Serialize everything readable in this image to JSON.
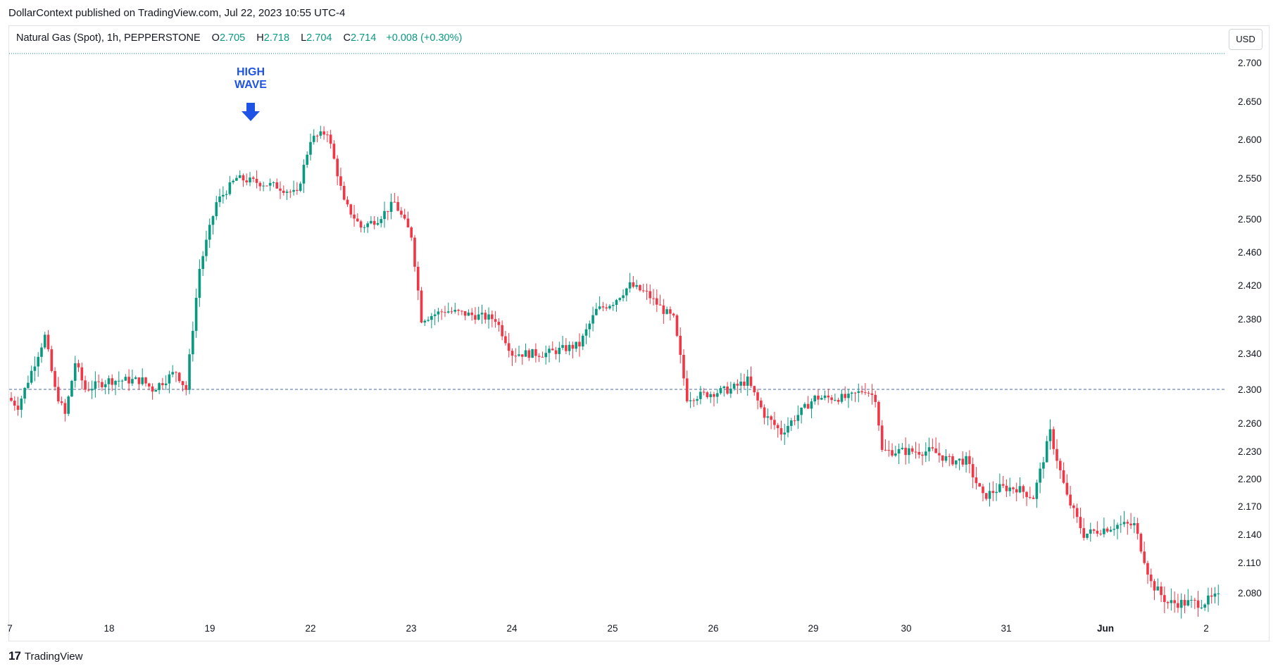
{
  "header": {
    "published": "DollarContext published on TradingView.com, Jul 22, 2023 10:55 UTC-4"
  },
  "legend": {
    "symbol": "Natural Gas (Spot), 1h, PEPPERSTONE",
    "o_label": "O",
    "o": "2.705",
    "h_label": "H",
    "h": "2.718",
    "l_label": "L",
    "l": "2.704",
    "c_label": "C",
    "c": "2.714",
    "change": "+0.008 (+0.30%)"
  },
  "currency_button": "USD",
  "footer": {
    "logo": "17",
    "brand": "TradingView"
  },
  "annotation": {
    "line1": "HIGH",
    "line2": "WAVE",
    "color": "#1e53e5"
  },
  "colors": {
    "up": "#089981",
    "down": "#f23645",
    "grid": "#ffffff",
    "dashed": "#4a6a9c",
    "top_line": "#089981"
  },
  "chart_data": {
    "type": "candlestick",
    "y_ticks": [
      "2.700",
      "2.650",
      "2.600",
      "2.550",
      "2.500",
      "2.460",
      "2.420",
      "2.380",
      "2.340",
      "2.300",
      "2.260",
      "2.230",
      "2.200",
      "2.170",
      "2.140",
      "2.110",
      "2.080"
    ],
    "x_ticks": [
      "7",
      "18",
      "19",
      "22",
      "23",
      "24",
      "25",
      "26",
      "29",
      "30",
      "31",
      "Jun",
      "2"
    ],
    "reference_level": 2.3,
    "ylim": [
      2.06,
      2.71
    ],
    "keypoints": [
      [
        0,
        2.29
      ],
      [
        3,
        2.28
      ],
      [
        8,
        2.33
      ],
      [
        11,
        2.36
      ],
      [
        14,
        2.3
      ],
      [
        17,
        2.27
      ],
      [
        20,
        2.33
      ],
      [
        23,
        2.3
      ],
      [
        30,
        2.31
      ],
      [
        40,
        2.31
      ],
      [
        43,
        2.3
      ],
      [
        50,
        2.32
      ],
      [
        53,
        2.3
      ],
      [
        57,
        2.44
      ],
      [
        62,
        2.52
      ],
      [
        68,
        2.55
      ],
      [
        80,
        2.54
      ],
      [
        86,
        2.53
      ],
      [
        90,
        2.6
      ],
      [
        95,
        2.61
      ],
      [
        100,
        2.52
      ],
      [
        105,
        2.49
      ],
      [
        110,
        2.5
      ],
      [
        115,
        2.52
      ],
      [
        120,
        2.48
      ],
      [
        123,
        2.38
      ],
      [
        130,
        2.39
      ],
      [
        145,
        2.38
      ],
      [
        150,
        2.34
      ],
      [
        160,
        2.34
      ],
      [
        170,
        2.35
      ],
      [
        175,
        2.39
      ],
      [
        180,
        2.4
      ],
      [
        185,
        2.42
      ],
      [
        190,
        2.41
      ],
      [
        195,
        2.39
      ],
      [
        198,
        2.38
      ],
      [
        202,
        2.29
      ],
      [
        215,
        2.3
      ],
      [
        220,
        2.31
      ],
      [
        225,
        2.27
      ],
      [
        230,
        2.25
      ],
      [
        235,
        2.27
      ],
      [
        240,
        2.29
      ],
      [
        250,
        2.29
      ],
      [
        255,
        2.3
      ],
      [
        258,
        2.29
      ],
      [
        260,
        2.23
      ],
      [
        275,
        2.23
      ],
      [
        280,
        2.22
      ],
      [
        285,
        2.22
      ],
      [
        290,
        2.18
      ],
      [
        295,
        2.19
      ],
      [
        300,
        2.19
      ],
      [
        305,
        2.18
      ],
      [
        310,
        2.25
      ],
      [
        315,
        2.18
      ],
      [
        320,
        2.14
      ],
      [
        330,
        2.15
      ],
      [
        335,
        2.15
      ],
      [
        340,
        2.09
      ],
      [
        345,
        2.07
      ],
      [
        355,
        2.07
      ],
      [
        359,
        2.075
      ]
    ]
  }
}
